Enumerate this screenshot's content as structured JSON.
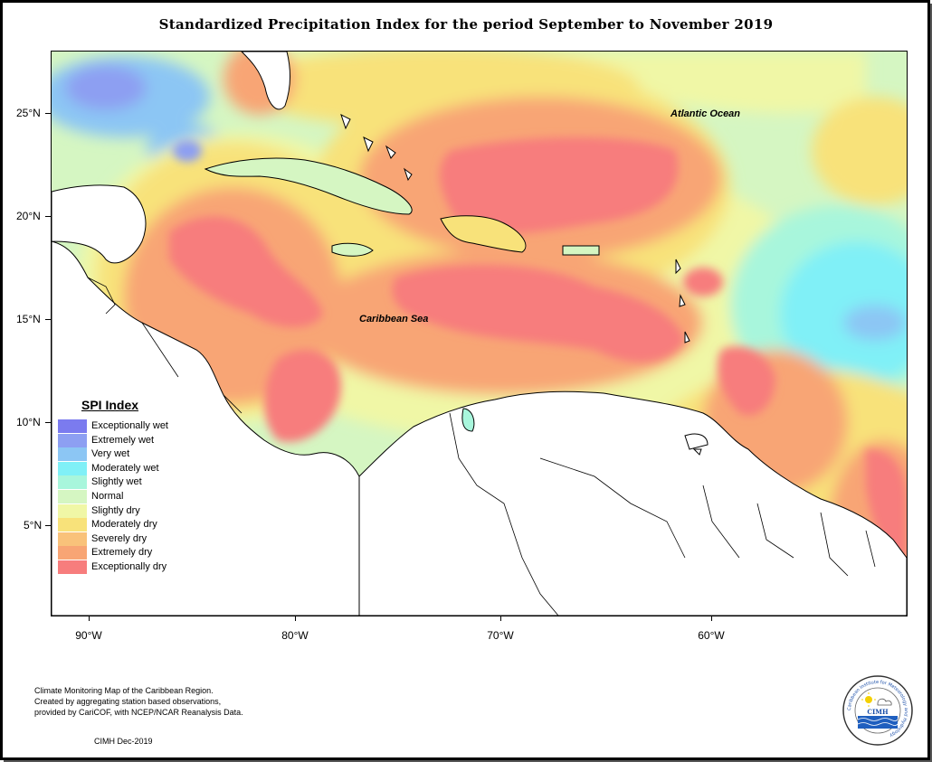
{
  "title": "Standardized Precipitation Index for the period September to November 2019",
  "map": {
    "y_labels": [
      "25°N",
      "20°N",
      "15°N",
      "10°N",
      "5°N"
    ],
    "x_labels": [
      "90°W",
      "80°W",
      "70°W",
      "60°W"
    ],
    "places": {
      "atlantic": "Atlantic Ocean",
      "caribbean": "Caribbean Sea"
    }
  },
  "legend": {
    "title": "SPI Index",
    "items": [
      {
        "label": "Exceptionally wet",
        "color": "#7b7bef"
      },
      {
        "label": "Extremely wet",
        "color": "#8d9ff2"
      },
      {
        "label": "Very wet",
        "color": "#8cc6f4"
      },
      {
        "label": "Moderately wet",
        "color": "#80f0f7"
      },
      {
        "label": "Slightly wet",
        "color": "#a8f6dc"
      },
      {
        "label": "Normal",
        "color": "#d5f6c2"
      },
      {
        "label": "Slightly dry",
        "color": "#f0f7a6"
      },
      {
        "label": "Moderately dry",
        "color": "#f8e27a"
      },
      {
        "label": "Severely dry",
        "color": "#f9c27a"
      },
      {
        "label": "Extremely dry",
        "color": "#f8a574"
      },
      {
        "label": "Exceptionally dry",
        "color": "#f77d7d"
      }
    ]
  },
  "credit": {
    "line1": "Climate Monitoring Map of the Caribbean Region.",
    "line2": "Created by aggregating station based observations,",
    "line3": "provided by CariCOF, with NCEP/NCAR Reanalysis Data.",
    "date": "CIMH Dec-2019"
  },
  "logo": {
    "text": "CIMH",
    "ring_text": "Caribbean Institute for Meteorology and Hydrology"
  }
}
